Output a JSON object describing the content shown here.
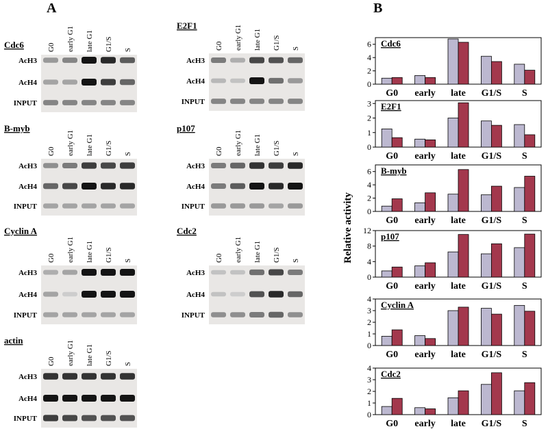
{
  "panel_a": {
    "label": "A",
    "gels": [
      {
        "gene": "Cdc6",
        "lanes": [
          "G0",
          "early G1",
          "late G1",
          "G1/S",
          "S"
        ],
        "rows": [
          "AcH3",
          "AcH4",
          "INPUT"
        ]
      },
      {
        "gene": "E2F1",
        "lanes": [
          "G0",
          "early G1",
          "late G1",
          "G1/S",
          "S"
        ],
        "rows": [
          "AcH3",
          "AcH4",
          "INPUT"
        ]
      },
      {
        "gene": "B-myb",
        "lanes": [
          "G0",
          "early G1",
          "late G1",
          "G1/S",
          "S"
        ],
        "rows": [
          "AcH3",
          "AcH4",
          "INPUT"
        ]
      },
      {
        "gene": "p107",
        "lanes": [
          "G0",
          "early G1",
          "late G1",
          "G1/S",
          "S"
        ],
        "rows": [
          "AcH3",
          "AcH4",
          "INPUT"
        ]
      },
      {
        "gene": "Cyclin A",
        "lanes": [
          "G0",
          "early G1",
          "late G1",
          "G1/S",
          "S"
        ],
        "rows": [
          "AcH3",
          "AcH4",
          "INPUT"
        ]
      },
      {
        "gene": "Cdc2",
        "lanes": [
          "G0",
          "early G1",
          "late G1",
          "G1/S",
          "S"
        ],
        "rows": [
          "AcH3",
          "AcH4",
          "INPUT"
        ]
      },
      {
        "gene": "actin",
        "lanes": [
          "G0",
          "early G1",
          "late G1",
          "G1/S",
          "S"
        ],
        "rows": [
          "AcH3",
          "AcH4",
          "INPUT"
        ]
      }
    ]
  },
  "panel_b": {
    "label": "B",
    "y_label": "Relative activity"
  },
  "chart_data": [
    {
      "type": "bar",
      "title": "Cdc6",
      "categories": [
        "G0",
        "early",
        "late",
        "G1/S",
        "S"
      ],
      "ylim": [
        0,
        7
      ],
      "yticks": [
        0,
        2,
        4,
        6
      ],
      "series": [
        {
          "color": "#bcb8d0",
          "values": [
            0.9,
            1.3,
            6.8,
            4.2,
            3.0
          ]
        },
        {
          "color": "#a3384d",
          "values": [
            1.0,
            1.0,
            6.3,
            3.4,
            2.1
          ]
        }
      ]
    },
    {
      "type": "bar",
      "title": "E2F1",
      "categories": [
        "G0",
        "early",
        "late",
        "G1/S",
        "S"
      ],
      "ylim": [
        0,
        3.2
      ],
      "yticks": [
        0,
        1,
        2,
        3
      ],
      "series": [
        {
          "color": "#bcb8d0",
          "values": [
            1.25,
            0.55,
            2.0,
            1.8,
            1.55
          ]
        },
        {
          "color": "#a3384d",
          "values": [
            0.65,
            0.5,
            3.05,
            1.5,
            0.85
          ]
        }
      ]
    },
    {
      "type": "bar",
      "title": "B-myb",
      "categories": [
        "G0",
        "early",
        "late",
        "G1/S",
        "S"
      ],
      "ylim": [
        0,
        7
      ],
      "yticks": [
        0,
        2,
        4,
        6
      ],
      "series": [
        {
          "color": "#bcb8d0",
          "values": [
            0.8,
            1.3,
            2.6,
            2.5,
            3.6
          ]
        },
        {
          "color": "#a3384d",
          "values": [
            1.9,
            2.8,
            6.3,
            3.8,
            5.3
          ]
        }
      ]
    },
    {
      "type": "bar",
      "title": "p107",
      "categories": [
        "G0",
        "early",
        "late",
        "G1/S",
        "S"
      ],
      "ylim": [
        0,
        12
      ],
      "yticks": [
        0,
        4,
        8,
        12
      ],
      "series": [
        {
          "color": "#bcb8d0",
          "values": [
            1.6,
            2.9,
            6.5,
            6.0,
            7.6
          ]
        },
        {
          "color": "#a3384d",
          "values": [
            2.6,
            3.7,
            11.0,
            8.6,
            11.1
          ]
        }
      ]
    },
    {
      "type": "bar",
      "title": "Cyclin A",
      "categories": [
        "G0",
        "early",
        "late",
        "G1/S",
        "S"
      ],
      "ylim": [
        0,
        4
      ],
      "yticks": [
        0,
        1,
        2,
        3,
        4
      ],
      "series": [
        {
          "color": "#bcb8d0",
          "values": [
            0.8,
            0.85,
            3.0,
            3.2,
            3.45
          ]
        },
        {
          "color": "#a3384d",
          "values": [
            1.35,
            0.6,
            3.3,
            2.7,
            2.95
          ]
        }
      ]
    },
    {
      "type": "bar",
      "title": "Cdc2",
      "categories": [
        "G0",
        "early",
        "late",
        "G1/S",
        "S"
      ],
      "ylim": [
        0,
        4
      ],
      "yticks": [
        0,
        1,
        2,
        3,
        4
      ],
      "series": [
        {
          "color": "#bcb8d0",
          "values": [
            0.7,
            0.6,
            1.45,
            2.6,
            2.05
          ]
        },
        {
          "color": "#a3384d",
          "values": [
            1.4,
            0.5,
            2.05,
            3.6,
            2.75
          ]
        }
      ]
    }
  ]
}
